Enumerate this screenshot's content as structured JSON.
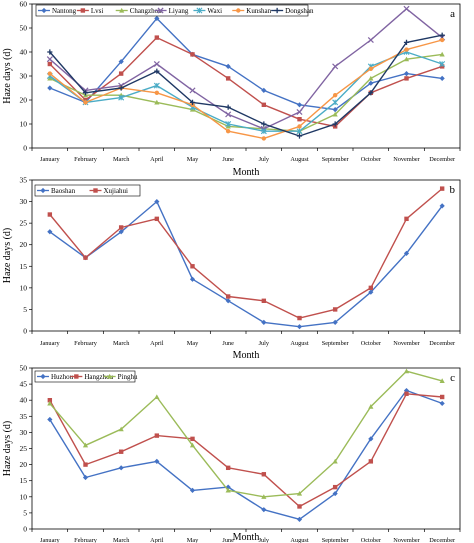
{
  "chart_data": [
    {
      "type": "line",
      "panel_label": "a",
      "categories": [
        "January",
        "February",
        "March",
        "April",
        "May",
        "June",
        "July",
        "August",
        "September",
        "October",
        "November",
        "December"
      ],
      "xlabel": "Month",
      "ylabel": "Haze days (d)",
      "ylim": [
        0,
        60
      ],
      "yticks": [
        0,
        10,
        20,
        30,
        40,
        50,
        60
      ],
      "legend_position": "top",
      "series": [
        {
          "name": "Nantong",
          "color": "#4472c4",
          "marker": "diamond",
          "values": [
            25,
            19,
            36,
            54,
            39,
            34,
            24,
            18,
            16,
            27,
            31,
            29
          ]
        },
        {
          "name": "Lvsi",
          "color": "#c0504d",
          "marker": "square",
          "values": [
            35,
            20,
            31,
            46,
            39,
            29,
            18,
            12,
            9,
            23,
            29,
            34
          ]
        },
        {
          "name": "Changzhou",
          "color": "#9bbb59",
          "marker": "triangle",
          "values": [
            29,
            22,
            22,
            19,
            16,
            9,
            8,
            7,
            14,
            29,
            37,
            39
          ]
        },
        {
          "name": "Liyang",
          "color": "#8064a2",
          "marker": "x",
          "values": [
            37,
            24,
            26,
            35,
            24,
            14,
            8,
            15,
            34,
            45,
            58,
            46
          ]
        },
        {
          "name": "Waxi",
          "color": "#4bacc6",
          "marker": "star",
          "values": [
            30,
            19,
            21,
            26,
            17,
            10,
            7,
            7,
            19,
            34,
            40,
            35
          ]
        },
        {
          "name": "Kunshan",
          "color": "#f79646",
          "marker": "circle",
          "values": [
            31,
            19,
            25,
            23,
            18,
            7,
            4,
            9,
            22,
            33,
            41,
            45
          ]
        },
        {
          "name": "Dongshan",
          "color": "#1f3864",
          "marker": "plus",
          "values": [
            40,
            23,
            25,
            32,
            19,
            17,
            10,
            5,
            10,
            23,
            44,
            47
          ]
        }
      ]
    },
    {
      "type": "line",
      "panel_label": "b",
      "categories": [
        "January",
        "February",
        "March",
        "April",
        "May",
        "June",
        "July",
        "August",
        "September",
        "October",
        "November",
        "December"
      ],
      "xlabel": "Month",
      "ylabel": "Haze days (d)",
      "ylim": [
        0,
        35
      ],
      "yticks": [
        0,
        5,
        10,
        15,
        20,
        25,
        30,
        35
      ],
      "legend_position": "top-left",
      "series": [
        {
          "name": "Baoshan",
          "color": "#4472c4",
          "marker": "diamond",
          "values": [
            23,
            17,
            23,
            30,
            12,
            7,
            2,
            1,
            2,
            9,
            18,
            29
          ]
        },
        {
          "name": "Xujiahui",
          "color": "#c0504d",
          "marker": "square",
          "values": [
            27,
            17,
            24,
            26,
            15,
            8,
            7,
            3,
            5,
            10,
            26,
            33
          ]
        }
      ]
    },
    {
      "type": "line",
      "panel_label": "c",
      "categories": [
        "January",
        "February",
        "March",
        "April",
        "May",
        "June",
        "July",
        "August",
        "September",
        "October",
        "November",
        "December"
      ],
      "xlabel": "Month",
      "ylabel": "Haze days (d)",
      "ylim": [
        0,
        50
      ],
      "yticks": [
        0,
        5,
        10,
        15,
        20,
        25,
        30,
        35,
        40,
        45,
        50
      ],
      "legend_position": "top-left",
      "series": [
        {
          "name": "Huzhou",
          "color": "#4472c4",
          "marker": "diamond",
          "values": [
            34,
            16,
            19,
            21,
            12,
            13,
            6,
            3,
            11,
            28,
            43,
            39
          ]
        },
        {
          "name": "Hangzhou",
          "color": "#c0504d",
          "marker": "square",
          "values": [
            40,
            20,
            24,
            29,
            28,
            19,
            17,
            7,
            13,
            21,
            42,
            41
          ]
        },
        {
          "name": "Pinghu",
          "color": "#9bbb59",
          "marker": "triangle",
          "values": [
            39,
            26,
            31,
            41,
            26,
            12,
            10,
            11,
            21,
            38,
            49,
            46
          ]
        }
      ]
    }
  ]
}
